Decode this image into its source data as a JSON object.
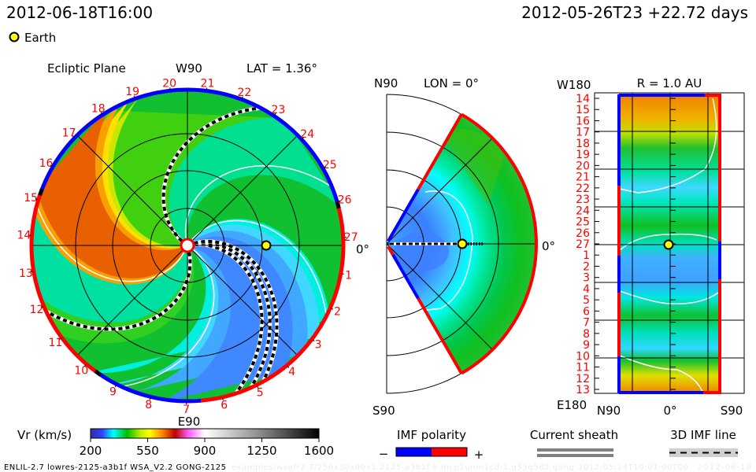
{
  "header": {
    "model_time": "2012-06-18T16:00",
    "ref_time": "2012-05-26T23 +22.72 days",
    "legend_earth": "Earth"
  },
  "ecliptic_panel": {
    "title": "Ecliptic Plane",
    "top_label": "W90",
    "lat_label": "LAT = 1.36°",
    "bottom_label": "E90",
    "right_label": "0°",
    "rim_labels": [
      "20",
      "21",
      "22",
      "23",
      "24",
      "25",
      "26",
      "27",
      "1",
      "2",
      "3",
      "4",
      "5",
      "6",
      "7",
      "8",
      "9",
      "10",
      "11",
      "12",
      "13",
      "14",
      "15",
      "16",
      "17",
      "18",
      "19"
    ]
  },
  "meridional_panel": {
    "top_label": "N90",
    "lon_label": "LON = 0°",
    "bottom_label": "S90",
    "right_label": "0°"
  },
  "radius_panel": {
    "top_left_label": "W180",
    "title": "R = 1.0 AU",
    "bottom_left_label": "E180",
    "x_labels": [
      "N90",
      "0°",
      "S90"
    ],
    "row_labels": [
      "14",
      "15",
      "16",
      "17",
      "18",
      "19",
      "20",
      "21",
      "22",
      "23",
      "24",
      "25",
      "26",
      "27",
      "1",
      "2",
      "3",
      "4",
      "5",
      "6",
      "7",
      "8",
      "9",
      "10",
      "11",
      "12",
      "13"
    ]
  },
  "colorbar": {
    "label": "Vr (km/s)",
    "ticks": [
      "200",
      "550",
      "900",
      "1250",
      "1600"
    ]
  },
  "imf_polarity": {
    "label": "IMF polarity",
    "minus": "−",
    "plus": "+",
    "negative_color": "#0000ff",
    "positive_color": "#ff0000"
  },
  "current_sheath": {
    "label": "Current sheath"
  },
  "imf_line": {
    "label": "3D IMF line"
  },
  "footer": {
    "run_info": "ENLIL-2.7 lowres-2125-a3b1f WSA_V2.2 GONG-2125",
    "run_path": "examples/wsafr2.7/256x30x90x1.2125-a3b1f.8-mcp1umn1cd-1.g53q5d2.gong-2012:05:24T10:01:00T00",
    "run_date": "2012-06-18"
  },
  "colors": {
    "earth": "#ffff00",
    "rim_negative": "#0000ff",
    "rim_positive": "#ff0000",
    "labels": "#ff0000"
  }
}
